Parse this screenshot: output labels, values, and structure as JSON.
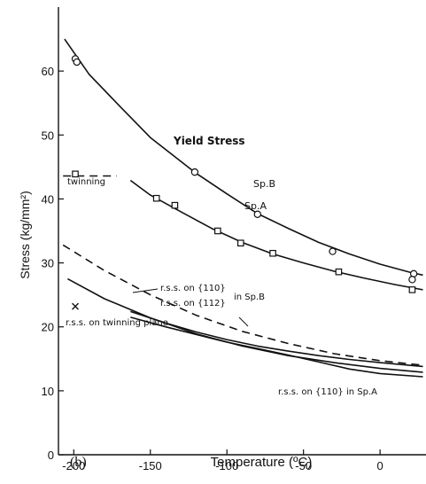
{
  "chart_data": {
    "type": "line",
    "panel_label": "(b)",
    "xlabel": "Temperature (ºC)",
    "ylabel": "Stress (kg/mm²)",
    "xlim": [
      -210,
      30
    ],
    "ylim": [
      0,
      70
    ],
    "x_ticks": [
      -200,
      -150,
      -100,
      -50,
      0
    ],
    "x_tick_labels": [
      "-200",
      "-150",
      "-100",
      "-50",
      "0"
    ],
    "y_ticks": [
      0,
      10,
      20,
      30,
      40,
      50,
      60
    ],
    "y_tick_labels": [
      "0",
      "10",
      "20",
      "30",
      "40",
      "50",
      "60"
    ],
    "grid": false,
    "series": [
      {
        "name": "Yield Stress Sp.B",
        "style": "solid",
        "marker": "circle",
        "curve": [
          [
            -206,
            65.0
          ],
          [
            -190,
            59.5
          ],
          [
            -170,
            54.5
          ],
          [
            -150,
            49.6
          ],
          [
            -120,
            44.0
          ],
          [
            -100,
            40.8
          ],
          [
            -80,
            37.7
          ],
          [
            -60,
            35.4
          ],
          [
            -40,
            33.2
          ],
          [
            -20,
            31.4
          ],
          [
            0,
            29.8
          ],
          [
            20,
            28.5
          ],
          [
            28,
            28.1
          ]
        ],
        "points": [
          [
            -199,
            61.9
          ],
          [
            -198,
            61.4
          ],
          [
            -121,
            44.2
          ],
          [
            -80,
            37.6
          ],
          [
            -31,
            31.8
          ],
          [
            22,
            28.3
          ],
          [
            21,
            27.4
          ]
        ]
      },
      {
        "name": "Sp.A",
        "style": "solid",
        "marker": "square",
        "curve": [
          [
            -163,
            42.9
          ],
          [
            -150,
            40.6
          ],
          [
            -130,
            38.0
          ],
          [
            -110,
            35.4
          ],
          [
            -90,
            33.2
          ],
          [
            -70,
            31.4
          ],
          [
            -50,
            30.0
          ],
          [
            -30,
            28.7
          ],
          [
            -10,
            27.6
          ],
          [
            10,
            26.6
          ],
          [
            28,
            25.8
          ]
        ],
        "points": [
          [
            -146,
            40.1
          ],
          [
            -134,
            39.0
          ],
          [
            -106,
            35.0
          ],
          [
            -91,
            33.1
          ],
          [
            -70,
            31.5
          ],
          [
            -27,
            28.6
          ],
          [
            21,
            25.8
          ]
        ]
      },
      {
        "name": "r.s.s. on {112} in Sp.B",
        "style": "dashed",
        "curve": [
          [
            -207,
            32.8
          ],
          [
            -180,
            28.8
          ],
          [
            -150,
            25.0
          ],
          [
            -120,
            21.8
          ],
          [
            -90,
            19.3
          ],
          [
            -60,
            17.4
          ],
          [
            -30,
            15.8
          ],
          [
            0,
            14.7
          ],
          [
            28,
            14.0
          ]
        ]
      },
      {
        "name": "r.s.s. on {110} in Sp.B",
        "style": "solid",
        "curve": [
          [
            -204,
            27.5
          ],
          [
            -180,
            24.4
          ],
          [
            -150,
            21.4
          ],
          [
            -120,
            18.9
          ],
          [
            -90,
            17.0
          ],
          [
            -60,
            15.5
          ],
          [
            -30,
            14.4
          ],
          [
            0,
            13.5
          ],
          [
            28,
            12.9
          ]
        ]
      },
      {
        "name": "r.s.s. on {110} in Sp.A",
        "style": "solid",
        "curve": [
          [
            -163,
            22.4
          ],
          [
            -140,
            20.6
          ],
          [
            -120,
            19.2
          ],
          [
            -100,
            18.0
          ],
          [
            -80,
            17.0
          ],
          [
            -60,
            16.2
          ],
          [
            -40,
            15.5
          ],
          [
            -20,
            14.9
          ],
          [
            0,
            14.4
          ],
          [
            28,
            13.8
          ]
        ]
      },
      {
        "name": "r.s.s. on twinning plane",
        "style": "solid",
        "curve": [
          [
            -163,
            21.5
          ],
          [
            -140,
            20.0
          ],
          [
            -120,
            18.8
          ],
          [
            -100,
            17.6
          ],
          [
            -80,
            16.6
          ],
          [
            -60,
            15.6
          ],
          [
            -40,
            14.5
          ],
          [
            -20,
            13.4
          ],
          [
            0,
            12.7
          ],
          [
            28,
            12.2
          ]
        ]
      },
      {
        "name": "twinning",
        "style": "dashed",
        "marker": "square",
        "curve": [
          [
            -207,
            43.6
          ],
          [
            -172,
            43.6
          ]
        ],
        "points": [
          [
            -199,
            43.9
          ]
        ]
      },
      {
        "name": "r.s.s. on twinning plane",
        "style": "none",
        "marker": "cross",
        "points": [
          [
            -199,
            23.2
          ]
        ]
      }
    ],
    "annotations": {
      "yield_stress": "Yield Stress",
      "sp_b": "Sp.B",
      "sp_a": "Sp.A",
      "twinning": "twinning",
      "rss_110_line": "r.s.s. on {110}",
      "rss_112_line": "r.s.s. on {112}",
      "in_sp_b": "in Sp.B",
      "rss_twin": "r.s.s. on twinning plane",
      "rss_110_sp_a": "r.s.s. on {110} in Sp.A"
    }
  }
}
